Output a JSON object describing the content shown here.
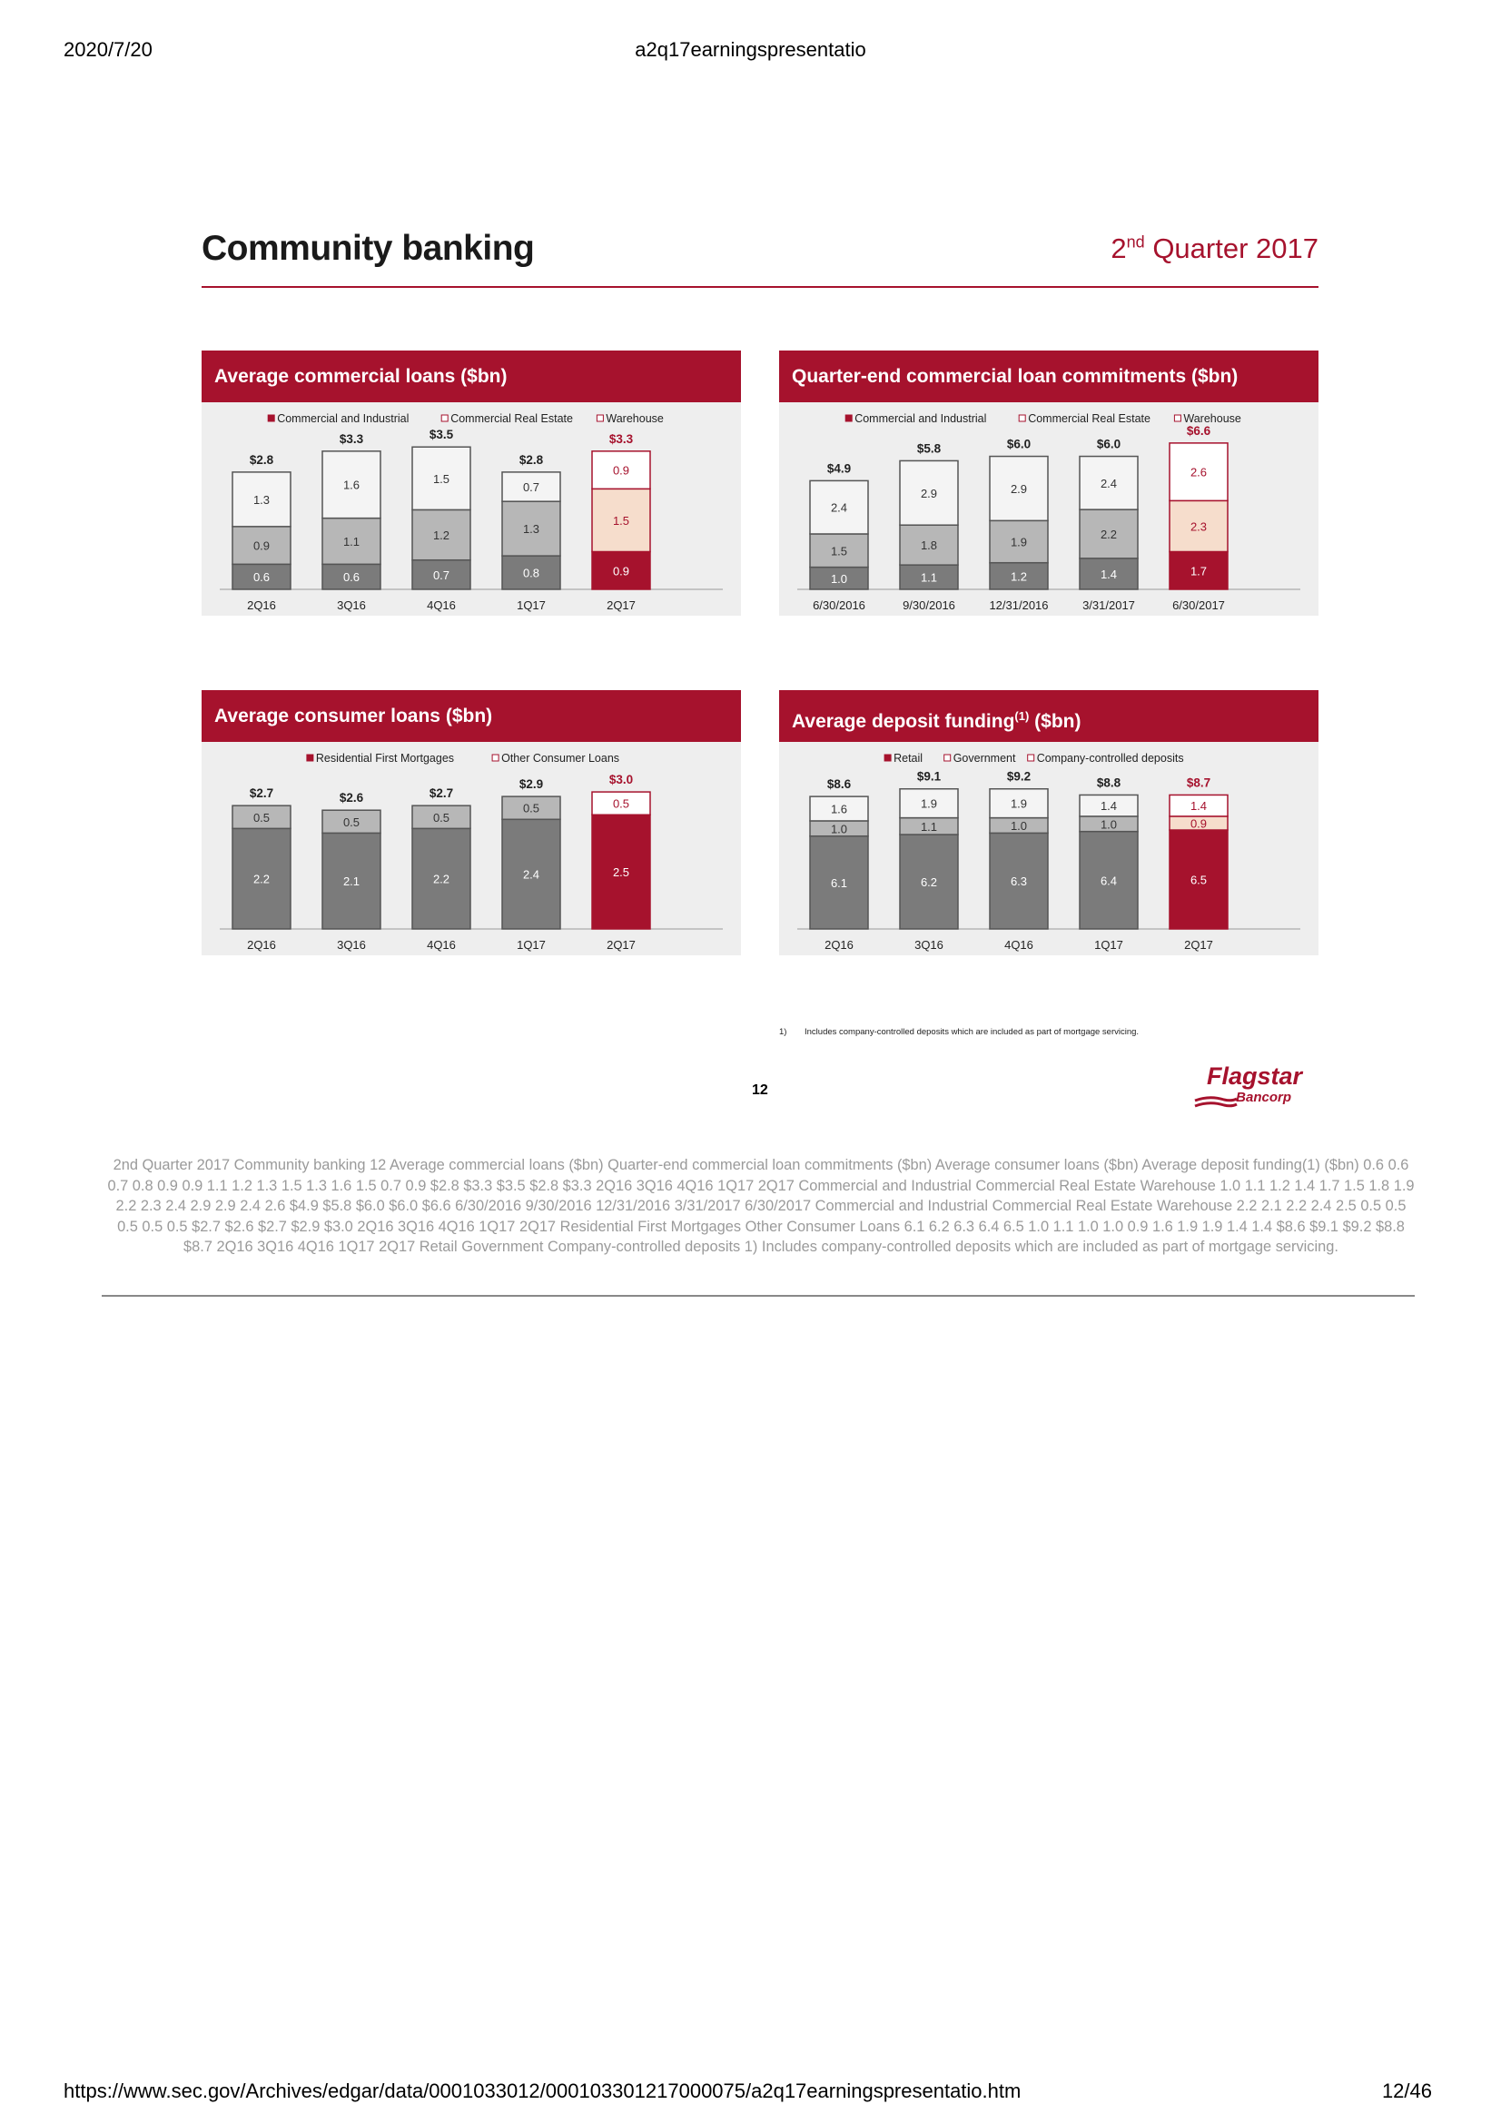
{
  "browser": {
    "date": "2020/7/20",
    "doc_title": "a2q17earningspresentatio",
    "url": "https://www.sec.gov/Archives/edgar/data/0001033012/000103301217000075/a2q17earningspresentatio.htm",
    "page": "12/46"
  },
  "slide": {
    "title": "Community banking",
    "quarter_pre": "2",
    "quarter_sup": "nd",
    "quarter_post": " Quarter 2017",
    "footnote_num": "1)",
    "footnote": "Includes company-controlled deposits which are included as part of mortgage servicing.",
    "slide_number": "12",
    "logo_word": "Flagstar",
    "logo_sub": "Bancorp"
  },
  "colors": {
    "accent": "#a6122d",
    "dark_gray": "#7b7b7b",
    "mid_gray": "#b7b7b7",
    "white_seg": "#f4f4f4",
    "peach": "#f6ddcc",
    "panel_bg": "#eeeeee"
  },
  "chart_data": [
    {
      "type": "bar",
      "stacked": true,
      "title": "Average commercial loans ($bn)",
      "categories": [
        "2Q16",
        "3Q16",
        "4Q16",
        "1Q17",
        "2Q17"
      ],
      "series": [
        {
          "name": "Commercial and Industrial",
          "values": [
            0.6,
            0.6,
            0.7,
            0.8,
            0.9
          ]
        },
        {
          "name": "Commercial Real Estate",
          "values": [
            0.9,
            1.1,
            1.2,
            1.3,
            1.5
          ]
        },
        {
          "name": "Warehouse",
          "values": [
            1.3,
            1.6,
            1.5,
            0.7,
            0.9
          ]
        }
      ],
      "totals": [
        "$2.8",
        "$3.3",
        "$3.5",
        "$2.8",
        "$3.3"
      ],
      "ylim": [
        0,
        3.6
      ],
      "highlight_last": true,
      "legend": "top"
    },
    {
      "type": "bar",
      "stacked": true,
      "title": "Quarter-end commercial loan commitments ($bn)",
      "categories": [
        "6/30/2016",
        "9/30/2016",
        "12/31/2016",
        "3/31/2017",
        "6/30/2017"
      ],
      "series": [
        {
          "name": "Commercial and Industrial",
          "values": [
            1.0,
            1.1,
            1.2,
            1.4,
            1.7
          ]
        },
        {
          "name": "Commercial Real Estate",
          "values": [
            1.5,
            1.8,
            1.9,
            2.2,
            2.3
          ]
        },
        {
          "name": "Warehouse",
          "values": [
            2.4,
            2.9,
            2.9,
            2.4,
            2.6
          ]
        }
      ],
      "totals": [
        "$4.9",
        "$5.8",
        "$6.0",
        "$6.0",
        "$6.6"
      ],
      "ylim": [
        0,
        6.8
      ],
      "highlight_last": true,
      "legend": "top"
    },
    {
      "type": "bar",
      "stacked": true,
      "title": "Average consumer loans ($bn)",
      "categories": [
        "2Q16",
        "3Q16",
        "4Q16",
        "1Q17",
        "2Q17"
      ],
      "series": [
        {
          "name": "Residential First Mortgages",
          "values": [
            2.2,
            2.1,
            2.2,
            2.4,
            2.5
          ]
        },
        {
          "name": "Other Consumer Loans",
          "values": [
            0.5,
            0.5,
            0.5,
            0.5,
            0.5
          ]
        }
      ],
      "totals": [
        "$2.7",
        "$2.6",
        "$2.7",
        "$2.9",
        "$3.0"
      ],
      "ylim": [
        0,
        3.3
      ],
      "highlight_last": true,
      "legend": "top"
    },
    {
      "type": "bar",
      "stacked": true,
      "title_pre": "Average deposit funding",
      "title_sup": "(1)",
      "title_post": " ($bn)",
      "categories": [
        "2Q16",
        "3Q16",
        "4Q16",
        "1Q17",
        "2Q17"
      ],
      "series": [
        {
          "name": "Retail",
          "values": [
            6.1,
            6.2,
            6.3,
            6.4,
            6.5
          ]
        },
        {
          "name": "Government",
          "values": [
            1.0,
            1.1,
            1.0,
            1.0,
            0.9
          ]
        },
        {
          "name": "Company-controlled deposits",
          "values": [
            1.6,
            1.9,
            1.9,
            1.4,
            1.4
          ]
        }
      ],
      "totals": [
        "$8.6",
        "$9.1",
        "$9.2",
        "$8.8",
        "$8.7"
      ],
      "ylim": [
        0,
        9.9
      ],
      "highlight_last": true,
      "legend": "top"
    }
  ],
  "alt_text": "2nd Quarter 2017 Community banking 12 Average commercial loans ($bn) Quarter-end commercial loan commitments ($bn) Average consumer loans ($bn) Average deposit funding(1) ($bn) 0.6 0.6 0.7 0.8 0.9 0.9 1.1 1.2 1.3 1.5 1.3 1.6 1.5 0.7 0.9 $2.8 $3.3 $3.5 $2.8 $3.3 2Q16 3Q16 4Q16 1Q17 2Q17 Commercial and Industrial Commercial Real Estate Warehouse 1.0 1.1 1.2 1.4 1.7 1.5 1.8 1.9 2.2 2.3 2.4 2.9 2.9 2.4 2.6 $4.9 $5.8 $6.0 $6.0 $6.6 6/30/2016 9/30/2016 12/31/2016 3/31/2017 6/30/2017 Commercial and Industrial Commercial Real Estate Warehouse 2.2 2.1 2.2 2.4 2.5 0.5 0.5 0.5 0.5 0.5 $2.7 $2.6 $2.7 $2.9 $3.0 2Q16 3Q16 4Q16 1Q17 2Q17 Residential First Mortgages Other Consumer Loans 6.1 6.2 6.3 6.4 6.5 1.0 1.1 1.0 1.0 0.9 1.6 1.9 1.9 1.4 1.4 $8.6 $9.1 $9.2 $8.8 $8.7 2Q16 3Q16 4Q16 1Q17 2Q17 Retail Government Company-controlled deposits 1) Includes company-controlled deposits which are included as part of mortgage servicing."
}
